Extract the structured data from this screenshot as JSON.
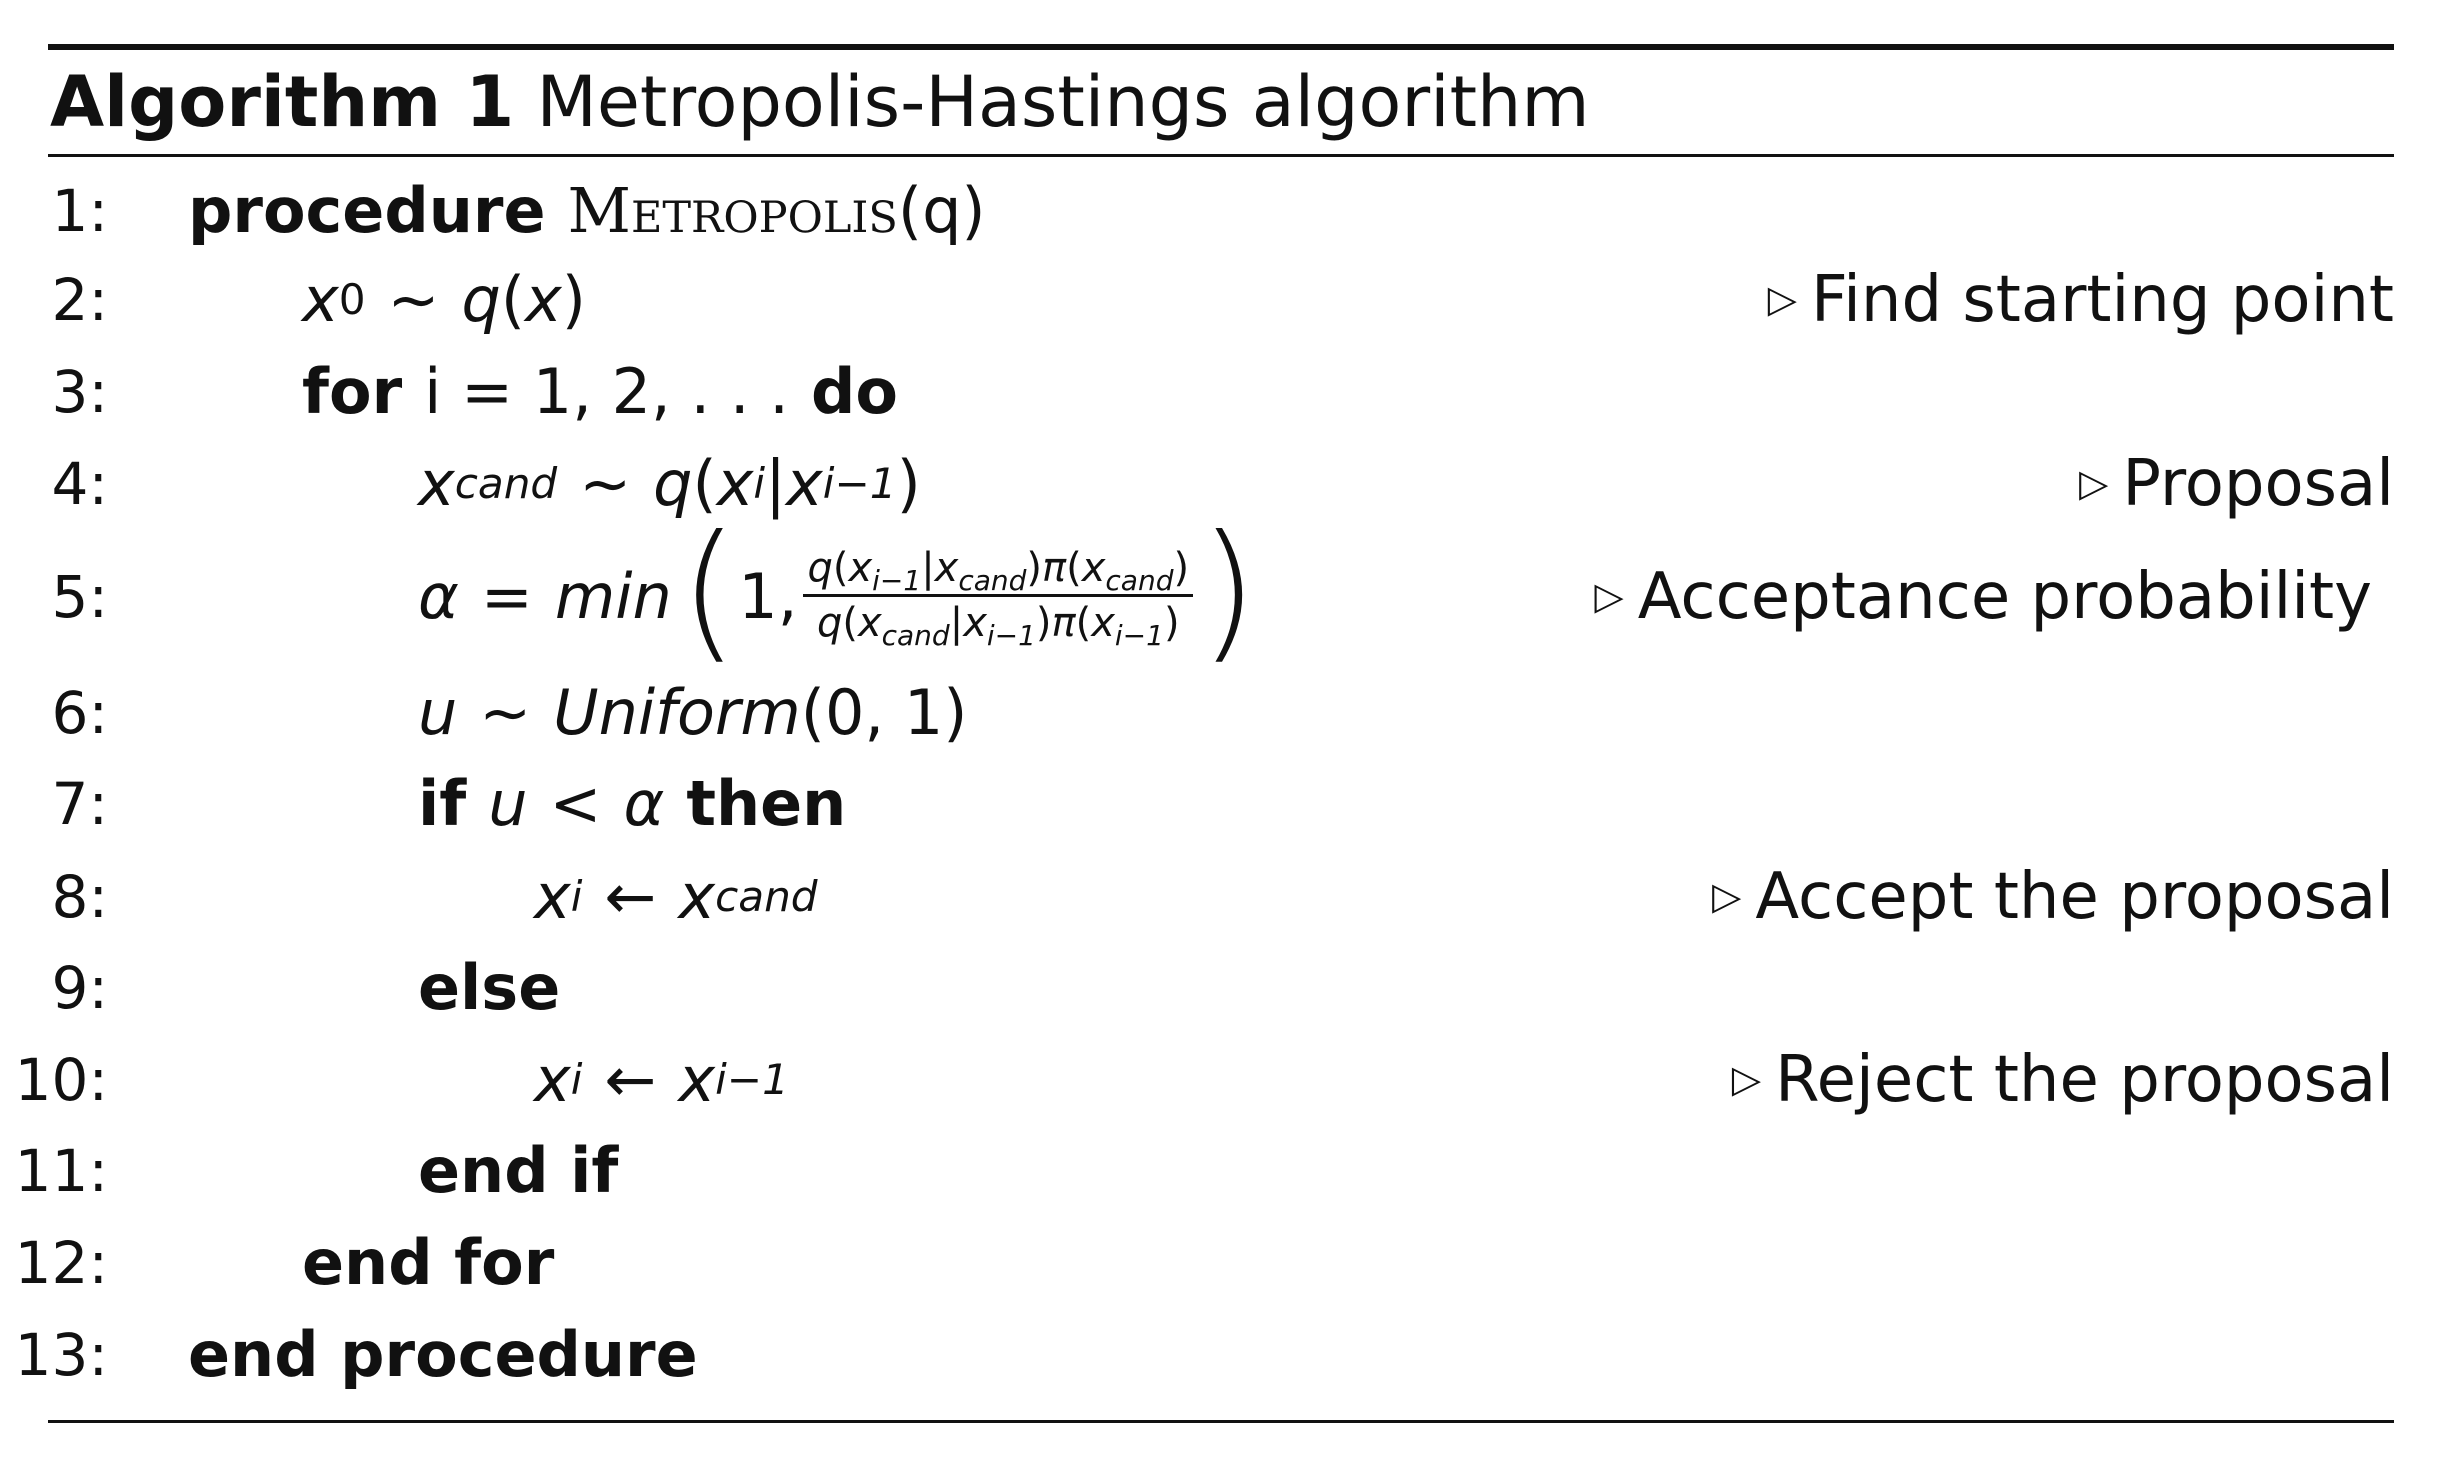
{
  "algorithm": {
    "label": "Algorithm 1",
    "title": "Metropolis-Hastings algorithm"
  },
  "symbols": {
    "comment_marker": "▷",
    "sim": "∼",
    "eq": "=",
    "lt": "<",
    "assign": "←"
  },
  "lines": [
    {
      "num": "1:",
      "keyword": "procedure",
      "name": "Metropolis",
      "args": "(q)"
    },
    {
      "num": "2:",
      "expr": "x0 ∼ q(x)",
      "comment": "Find starting point"
    },
    {
      "num": "3:",
      "kw_for": "for",
      "range": "i = 1, 2, . . .",
      "kw_do": "do"
    },
    {
      "num": "4:",
      "expr": "xcand ∼ q(xi|xi−1)",
      "comment": "Proposal"
    },
    {
      "num": "5:",
      "expr": "α = min(1, q(xi−1|xcand)π(xcand) / q(xcand|xi−1)π(xi−1))",
      "comment": "Acceptance probability"
    },
    {
      "num": "6:",
      "expr": "u ∼ Uniform(0, 1)"
    },
    {
      "num": "7:",
      "kw_if": "if",
      "cond": "u < α",
      "kw_then": "then"
    },
    {
      "num": "8:",
      "expr": "xi ← xcand",
      "comment": "Accept the proposal"
    },
    {
      "num": "9:",
      "keyword": "else"
    },
    {
      "num": "10:",
      "expr": "xi ← xi−1",
      "comment": "Reject the proposal"
    },
    {
      "num": "11:",
      "keyword": "end if"
    },
    {
      "num": "12:",
      "keyword": "end for"
    },
    {
      "num": "13:",
      "keyword": "end procedure"
    }
  ],
  "math": {
    "x": "x",
    "q": "q",
    "u": "u",
    "alpha": "α",
    "pi": "π",
    "min": "min",
    "uniform": "Uniform",
    "sub_0": "0",
    "sub_cand": "cand",
    "sub_i": "i",
    "sub_im1": "i−1",
    "one": "1",
    "comma": ",",
    "uniform_args": "(0, 1)",
    "lparen_big": "(",
    "rparen_big": ")",
    "lp": "(",
    "rp": ")",
    "bar": "|"
  }
}
